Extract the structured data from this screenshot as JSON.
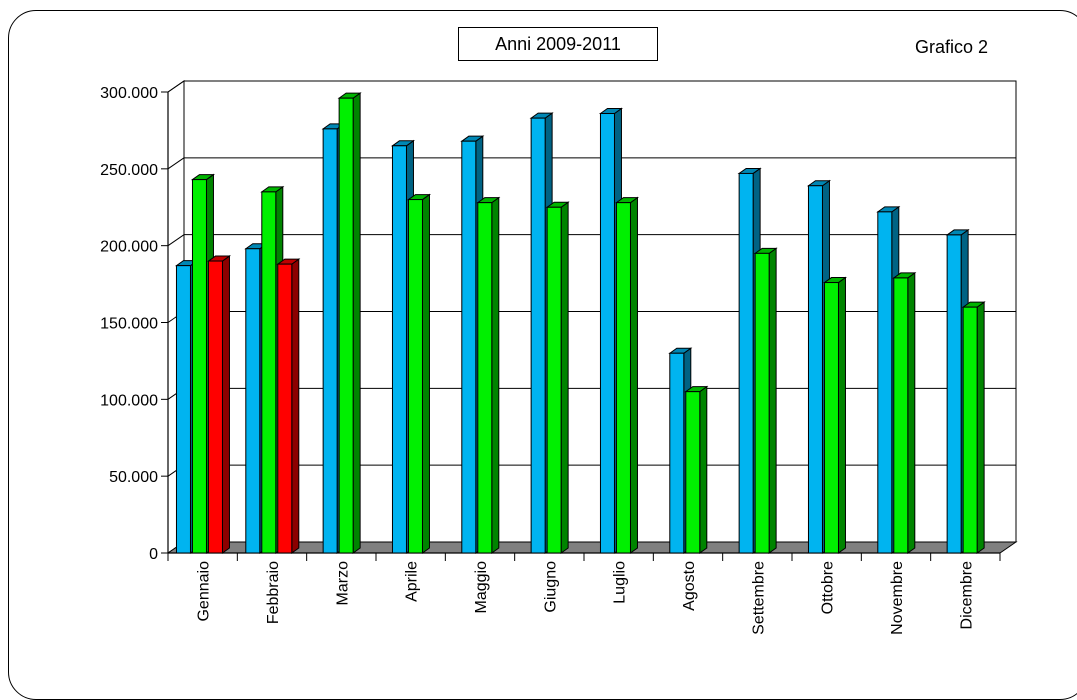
{
  "header": {
    "title": "Anni 2009-2011",
    "corner_label": "Grafico 2"
  },
  "colors": {
    "series_1": "#00b4f0",
    "series_2": "#00f000",
    "series_3": "#ff0000",
    "floor": "#808080",
    "background": "#ffffff"
  },
  "chart_data": {
    "type": "bar",
    "title": "Anni 2009-2011",
    "xlabel": "",
    "ylabel": "",
    "ylim": [
      0,
      300000
    ],
    "yticks": [
      0,
      50000,
      100000,
      150000,
      200000,
      250000,
      300000
    ],
    "ytick_labels": [
      "0",
      "50.000",
      "100.000",
      "150.000",
      "200.000",
      "250.000",
      "300.000"
    ],
    "grid": true,
    "three_d": true,
    "categories": [
      "Gennaio",
      "Febbraio",
      "Marzo",
      "Aprile",
      "Maggio",
      "Giugno",
      "Luglio",
      "Agosto",
      "Settembre",
      "Ottobre",
      "Novembre",
      "Dicembre"
    ],
    "series": [
      {
        "values": [
          187000,
          198000,
          276000,
          265000,
          268000,
          283000,
          286000,
          130000,
          247000,
          239000,
          222000,
          207000
        ]
      },
      {
        "values": [
          243000,
          235000,
          296000,
          230000,
          228000,
          225000,
          228000,
          105000,
          195000,
          176000,
          179000,
          160000
        ]
      },
      {
        "values": [
          190000,
          188000,
          null,
          null,
          null,
          null,
          null,
          null,
          null,
          null,
          null,
          null
        ]
      }
    ]
  }
}
